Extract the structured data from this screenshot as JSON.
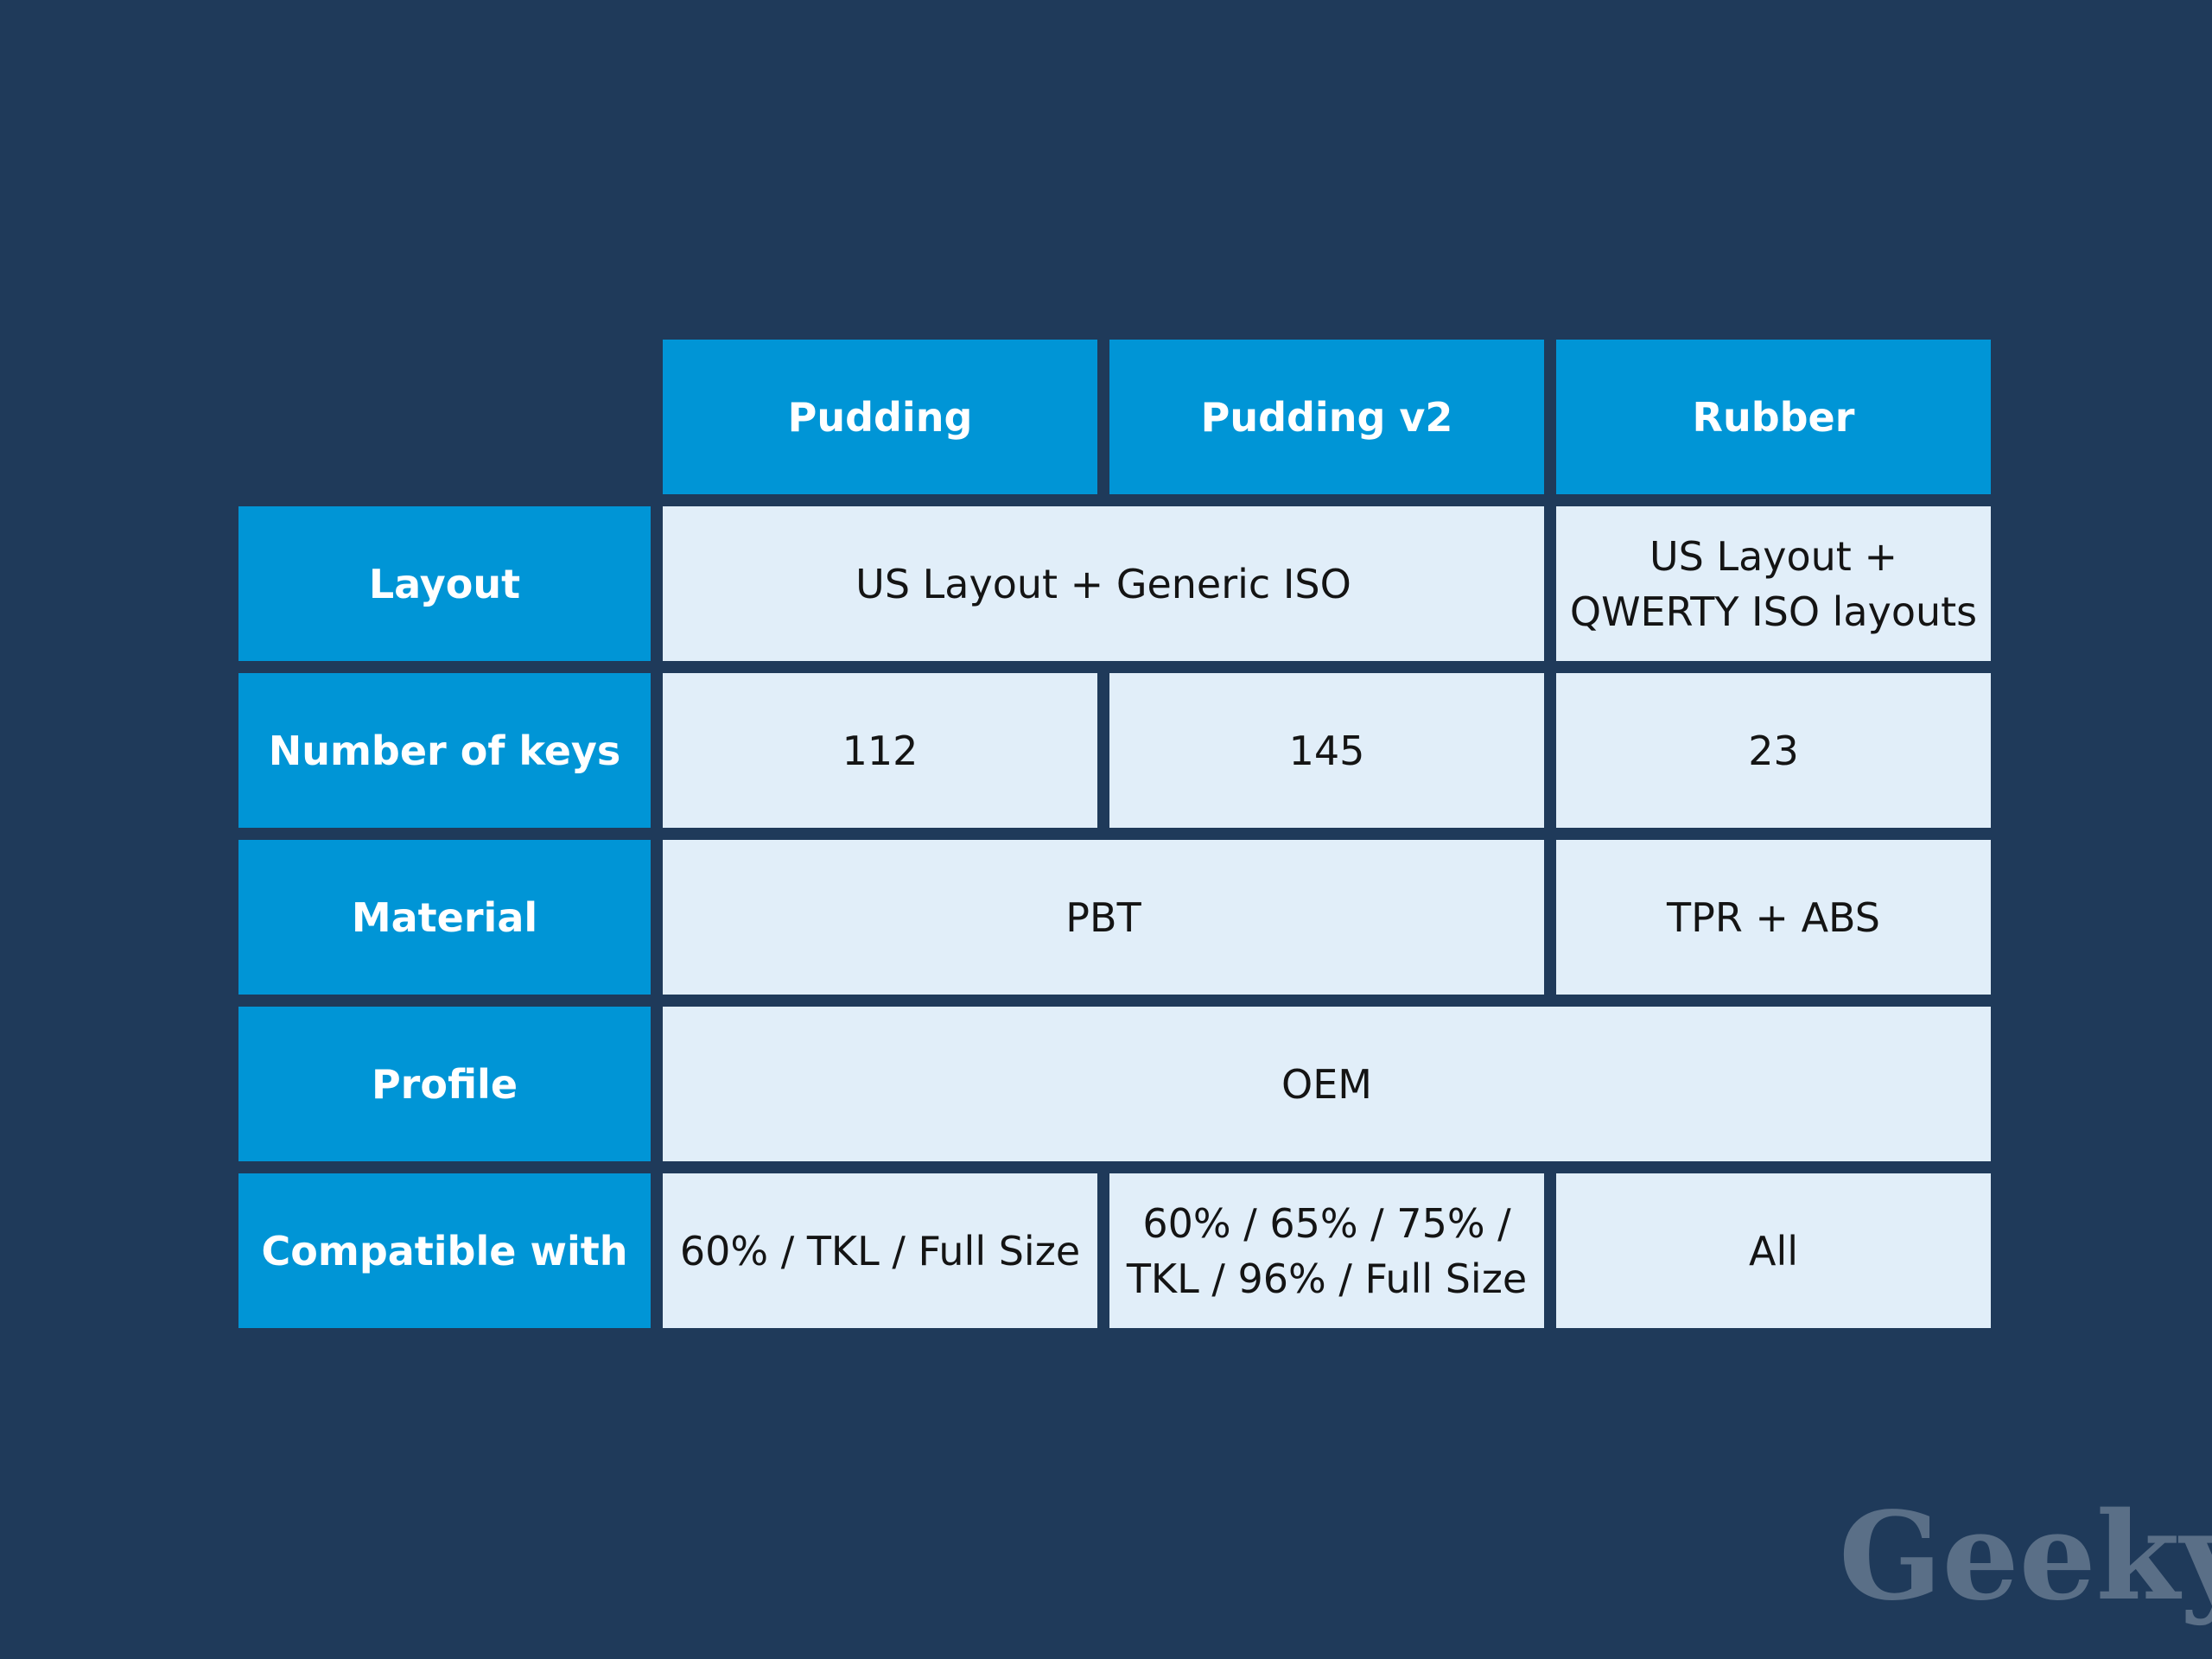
{
  "table": {
    "columns": [
      "Pudding",
      "Pudding v2",
      "Rubber"
    ],
    "rows": [
      {
        "label": "Layout",
        "cells": [
          "US Layout + Generic ISO",
          [
            "US Layout +",
            "QWERTY ISO layouts"
          ]
        ]
      },
      {
        "label": "Number of keys",
        "cells": [
          "112",
          "145",
          "23"
        ]
      },
      {
        "label": "Material",
        "cells": [
          "PBT",
          "TPR + ABS"
        ]
      },
      {
        "label": "Profile",
        "cells": [
          "OEM"
        ]
      },
      {
        "label": "Compatible with",
        "cells": [
          "60% / TKL / Full Size",
          [
            "60% / 65% / 75% /",
            "TKL / 96% / Full Size"
          ],
          "All"
        ]
      }
    ]
  },
  "watermark": "Geeky"
}
